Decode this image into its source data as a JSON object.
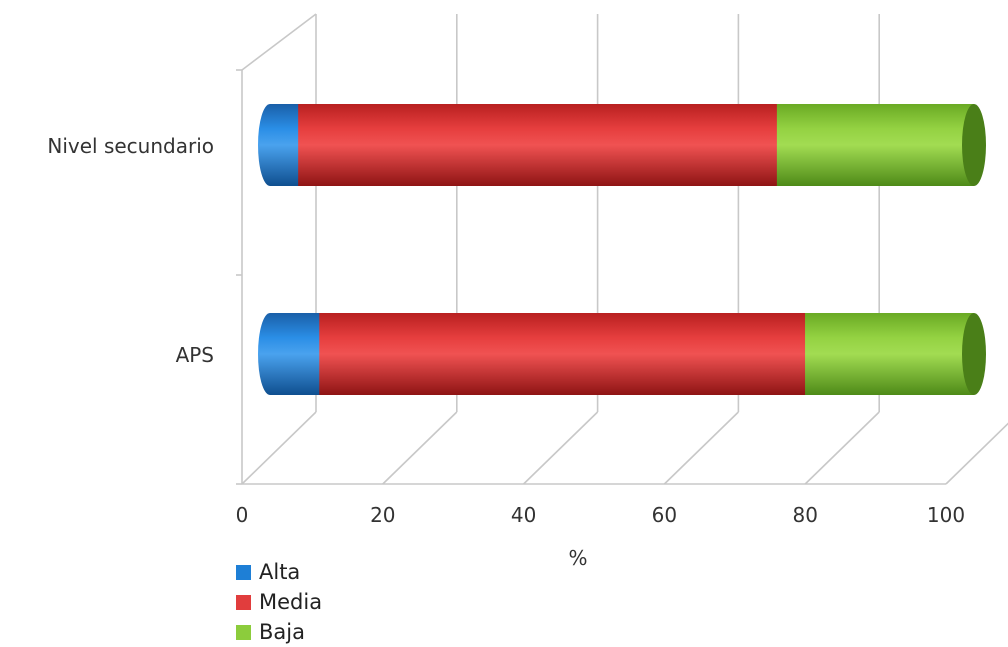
{
  "chart_data": {
    "type": "bar",
    "orientation": "horizontal",
    "stacked": true,
    "three_d": true,
    "categories": [
      "Nivel secundario",
      "APS"
    ],
    "series": [
      {
        "name": "Alta",
        "color": "#1e7fd6",
        "values": [
          4,
          7
        ]
      },
      {
        "name": "Media",
        "color": "#e13d3d",
        "values": [
          68,
          69
        ]
      },
      {
        "name": "Baja",
        "color": "#8ccc3c",
        "values": [
          28,
          24
        ]
      }
    ],
    "xlabel": "%",
    "xlim": [
      0,
      100
    ],
    "xticks": [
      "0",
      "20",
      "40",
      "60",
      "80",
      "100"
    ],
    "grid": true,
    "legend_position": "bottom-left"
  }
}
